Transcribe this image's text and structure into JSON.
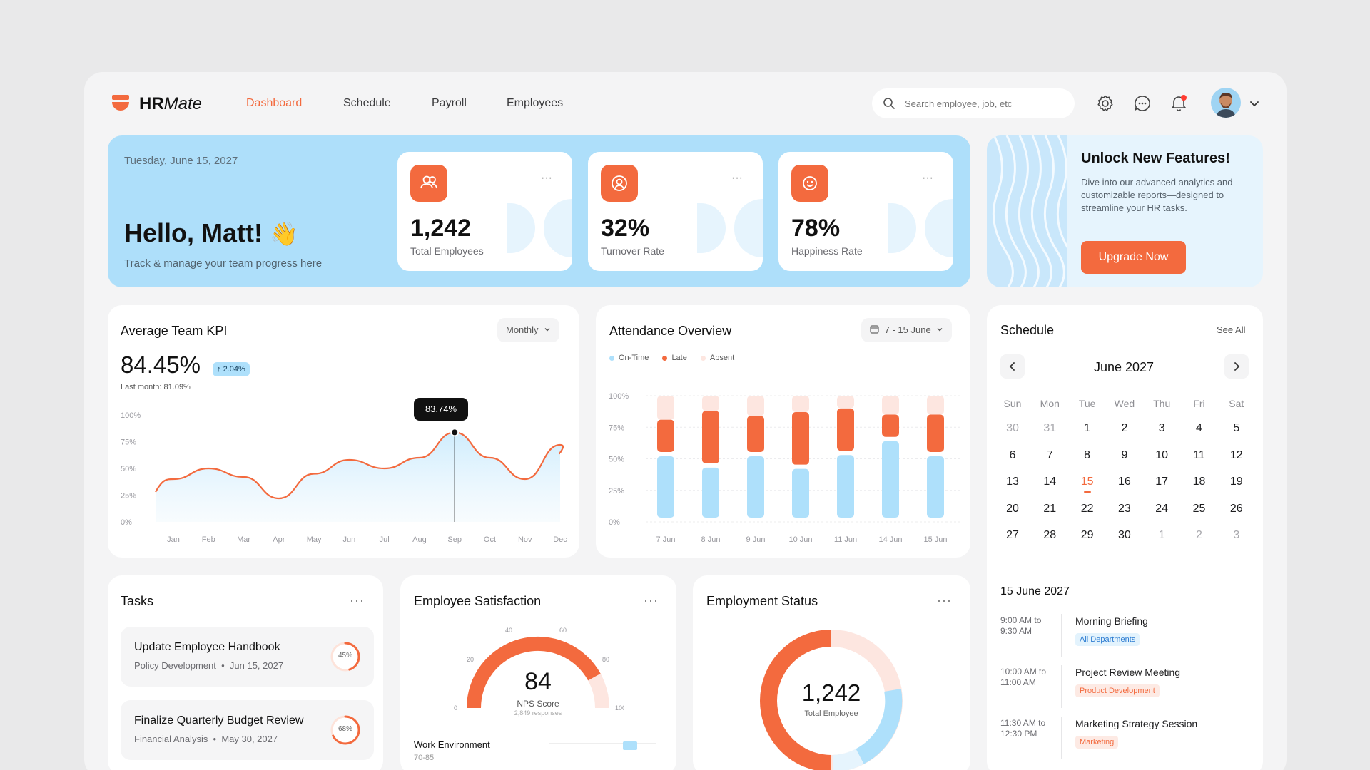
{
  "app": {
    "name_bold": "HR",
    "name_light": "Mate"
  },
  "nav": [
    {
      "label": "Dashboard",
      "active": true
    },
    {
      "label": "Schedule",
      "active": false
    },
    {
      "label": "Payroll",
      "active": false
    },
    {
      "label": "Employees",
      "active": false
    }
  ],
  "search": {
    "placeholder": "Search employee, job, etc"
  },
  "header_icons": [
    "gear-icon",
    "chat-icon",
    "bell-icon",
    "chevron-down-icon"
  ],
  "hero": {
    "date": "Tuesday, June 15, 2027",
    "greeting": "Hello, Matt!",
    "subtitle": "Track & manage your team progress here",
    "stats": [
      {
        "value": "1,242",
        "label": "Total Employees",
        "icon": "users-icon"
      },
      {
        "value": "32%",
        "label": "Turnover Rate",
        "icon": "user-cycle-icon"
      },
      {
        "value": "78%",
        "label": "Happiness Rate",
        "icon": "smile-icon"
      }
    ]
  },
  "promo": {
    "title": "Unlock New Features!",
    "text": "Dive into our advanced analytics and customizable reports—designed to streamline your HR tasks.",
    "button": "Upgrade Now"
  },
  "kpi": {
    "title": "Average Team KPI",
    "period": "Monthly",
    "value": "84.45%",
    "change": "2.04%",
    "last_month": "Last month: 81.09%",
    "tooltip": "83.74%"
  },
  "attendance": {
    "title": "Attendance Overview",
    "range": "7 - 15 June",
    "legend": [
      "On-Time",
      "Late",
      "Absent"
    ]
  },
  "schedule": {
    "title": "Schedule",
    "see_all": "See All",
    "month": "June 2027",
    "weekdays": [
      "Sun",
      "Mon",
      "Tue",
      "Wed",
      "Thu",
      "Fri",
      "Sat"
    ],
    "weeks": [
      [
        "30",
        "31",
        "1",
        "2",
        "3",
        "4",
        "5"
      ],
      [
        "6",
        "7",
        "8",
        "9",
        "10",
        "11",
        "12"
      ],
      [
        "13",
        "14",
        "15",
        "16",
        "17",
        "18",
        "19"
      ],
      [
        "20",
        "21",
        "22",
        "23",
        "24",
        "25",
        "26"
      ],
      [
        "27",
        "28",
        "29",
        "30",
        "1",
        "2",
        "3"
      ]
    ],
    "selected_date": "15 June 2027",
    "events": [
      {
        "time1": "9:00 AM to",
        "time2": "9:30 AM",
        "title": "Morning Briefing",
        "tag": "All Departments",
        "tag_kind": "blue"
      },
      {
        "time1": "10:00 AM to",
        "time2": "11:00 AM",
        "title": "Project Review Meeting",
        "tag": "Product Development",
        "tag_kind": "orange"
      },
      {
        "time1": "11:30 AM to",
        "time2": "12:30 PM",
        "title": "Marketing Strategy Session",
        "tag": "Marketing",
        "tag_kind": "orange"
      }
    ]
  },
  "tasks": {
    "title": "Tasks",
    "items": [
      {
        "title": "Update Employee Handbook",
        "category": "Policy Development",
        "date": "Jun 15, 2027",
        "progress": "45%",
        "progress_value": 0.45
      },
      {
        "title": "Finalize Quarterly Budget Review",
        "category": "Financial Analysis",
        "date": "May 30, 2027",
        "progress": "68%",
        "progress_value": 0.68
      }
    ]
  },
  "satisfaction": {
    "title": "Employee Satisfaction",
    "score": "84",
    "score_label": "NPS Score",
    "responses": "2,849 responses",
    "gauge_ticks": [
      "0",
      "20",
      "40",
      "60",
      "80",
      "100"
    ],
    "sub_label": "Work Environment",
    "sub_range": "70-85"
  },
  "employment": {
    "title": "Employment Status",
    "total": "1,242",
    "total_label": "Total Employee"
  },
  "colors": {
    "accent": "#f36a3e",
    "light_blue": "#aee0fb",
    "hero_bg": "#aedffa"
  },
  "chart_data": [
    {
      "type": "area",
      "x": [
        "Jan",
        "Feb",
        "Mar",
        "Apr",
        "May",
        "Jun",
        "Jul",
        "Aug",
        "Sep",
        "Oct",
        "Nov",
        "Dec"
      ],
      "y_ticks": [
        "0%",
        "25%",
        "50%",
        "75%",
        "100%"
      ],
      "ylim": [
        0,
        100
      ],
      "values": [
        40,
        50,
        42,
        22,
        45,
        58,
        50,
        60,
        83.74,
        60,
        40,
        72
      ],
      "highlight": {
        "x": "Sep",
        "value": 83.74
      },
      "grid": false
    },
    {
      "type": "bar",
      "stacked": true,
      "categories": [
        "7 Jun",
        "8 Jun",
        "9 Jun",
        "10 Jun",
        "11 Jun",
        "14 Jun",
        "15 Jun"
      ],
      "y_ticks": [
        "0%",
        "25%",
        "50%",
        "75%",
        "100%"
      ],
      "ylim": [
        0,
        100
      ],
      "series": [
        {
          "name": "On-Time",
          "values": [
            52,
            43,
            52,
            42,
            53,
            64,
            52
          ]
        },
        {
          "name": "Late",
          "values": [
            29,
            45,
            32,
            45,
            37,
            21,
            33
          ]
        },
        {
          "name": "Absent",
          "values": [
            19,
            12,
            16,
            13,
            10,
            15,
            15
          ]
        }
      ],
      "grid": true,
      "legend": "top-left"
    }
  ]
}
